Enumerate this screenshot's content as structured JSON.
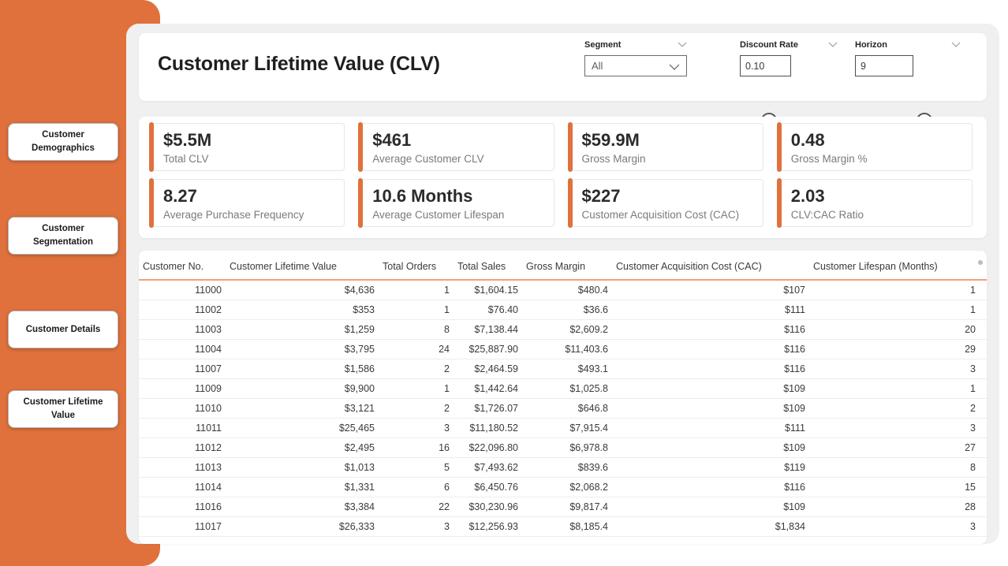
{
  "theme": {
    "accent_orange": "#E0713C",
    "table_header_underline": "#F0A27A",
    "canvas_background": "#F0F0F0"
  },
  "sidebar": {
    "items": [
      {
        "label": "Customer Demographics"
      },
      {
        "label": "Customer Segmentation"
      },
      {
        "label": "Customer Details"
      },
      {
        "label": "Customer Lifetime Value"
      }
    ]
  },
  "header": {
    "title": "Customer Lifetime Value (CLV)",
    "filters": {
      "segment": {
        "label": "Segment",
        "value": "All"
      },
      "discount_rate": {
        "label": "Discount Rate",
        "value": "0.10",
        "slider_pos_pct": 35
      },
      "horizon": {
        "label": "Horizon",
        "value": "9",
        "slider_pos_pct": 73
      }
    }
  },
  "kpis": [
    {
      "value": "$5.5M",
      "label": "Total CLV"
    },
    {
      "value": "$461",
      "label": "Average Customer CLV"
    },
    {
      "value": "$59.9M",
      "label": "Gross Margin"
    },
    {
      "value": "0.48",
      "label": "Gross Margin %"
    },
    {
      "value": "8.27",
      "label": "Average Purchase Frequency"
    },
    {
      "value": "10.6 Months",
      "label": "Average Customer Lifespan"
    },
    {
      "value": "$227",
      "label": "Customer Acquisition Cost (CAC)"
    },
    {
      "value": "2.03",
      "label": "CLV:CAC Ratio"
    }
  ],
  "table": {
    "columns": [
      "Customer No.",
      "Customer Lifetime Value",
      "Total Orders",
      "Total Sales",
      "Gross Margin",
      "Customer Acquisition Cost (CAC)",
      "Customer Lifespan (Months)"
    ],
    "rows": [
      [
        "11000",
        "$4,636",
        "1",
        "$1,604.15",
        "$480.4",
        "$107",
        "1"
      ],
      [
        "11002",
        "$353",
        "1",
        "$76.40",
        "$36.6",
        "$111",
        "1"
      ],
      [
        "11003",
        "$1,259",
        "8",
        "$7,138.44",
        "$2,609.2",
        "$116",
        "20"
      ],
      [
        "11004",
        "$3,795",
        "24",
        "$25,887.90",
        "$11,403.6",
        "$116",
        "29"
      ],
      [
        "11007",
        "$1,586",
        "2",
        "$2,464.59",
        "$493.1",
        "$116",
        "3"
      ],
      [
        "11009",
        "$9,900",
        "1",
        "$1,442.64",
        "$1,025.8",
        "$109",
        "1"
      ],
      [
        "11010",
        "$3,121",
        "2",
        "$1,726.07",
        "$646.8",
        "$109",
        "2"
      ],
      [
        "11011",
        "$25,465",
        "3",
        "$11,180.52",
        "$7,915.4",
        "$111",
        "3"
      ],
      [
        "11012",
        "$2,495",
        "16",
        "$22,096.80",
        "$6,978.8",
        "$109",
        "27"
      ],
      [
        "11013",
        "$1,013",
        "5",
        "$7,493.62",
        "$839.6",
        "$119",
        "8"
      ],
      [
        "11014",
        "$1,331",
        "6",
        "$6,450.76",
        "$2,068.2",
        "$116",
        "15"
      ],
      [
        "11016",
        "$3,384",
        "22",
        "$30,230.96",
        "$9,817.4",
        "$109",
        "28"
      ],
      [
        "11017",
        "$26,333",
        "3",
        "$12,256.93",
        "$8,185.4",
        "$1,834",
        "3"
      ]
    ]
  }
}
